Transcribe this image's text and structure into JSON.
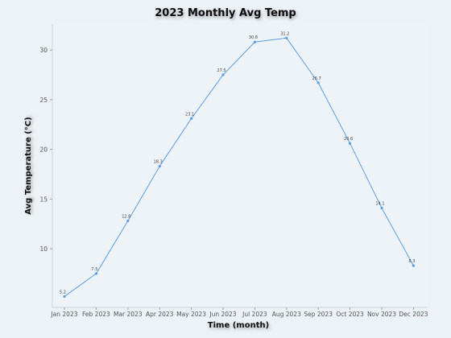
{
  "chart_data": {
    "type": "line",
    "title": "2023 Monthly Avg Temp",
    "xlabel": "Time (month)",
    "ylabel": "Avg Temperature (°C)",
    "categories": [
      "Jan 2023",
      "Feb 2023",
      "Mar 2023",
      "Apr 2023",
      "May 2023",
      "Jun 2023",
      "Jul 2023",
      "Aug 2023",
      "Sep 2023",
      "Oct 2023",
      "Nov 2023",
      "Dec 2023"
    ],
    "series": [
      {
        "values": [
          5.2,
          7.5,
          12.8,
          18.3,
          23.1,
          27.5,
          30.8,
          31.2,
          26.7,
          20.6,
          14.1,
          8.3
        ],
        "labels": [
          "5.2",
          "7.5",
          "12.8",
          "18.3",
          "23.1",
          "27.5",
          "30.8",
          "31.2",
          "26.7",
          "20.6",
          "14.1",
          "8.3"
        ],
        "color": "#5a9fe6"
      }
    ],
    "yticks": [
      "10",
      "15",
      "20",
      "25",
      "30"
    ],
    "ylim": [
      4.1,
      32.6
    ],
    "grid": false,
    "legend": "none"
  }
}
